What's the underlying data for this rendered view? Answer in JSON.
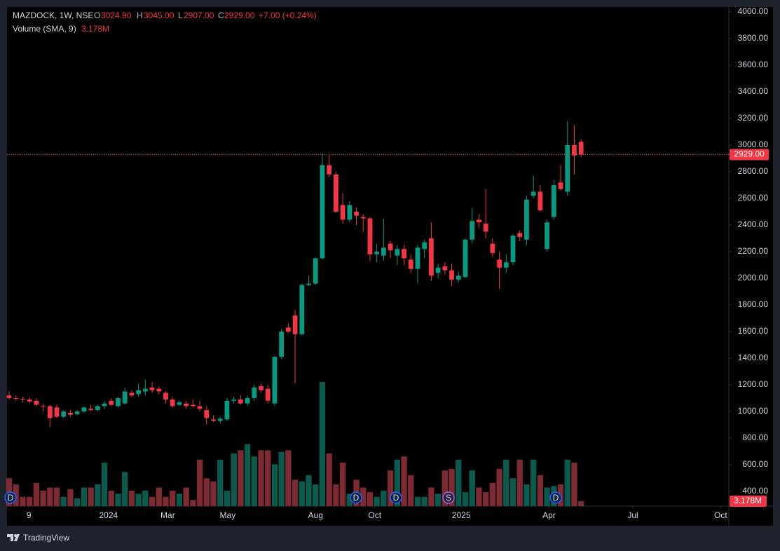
{
  "chart_data": {
    "type": "candlestick",
    "legend": {
      "symbol": "MAZDOCK, 1W, NSE",
      "open_label": "O",
      "open": "3024.90",
      "high_label": "H",
      "high": "3045.00",
      "low_label": "L",
      "low": "2907.00",
      "close_label": "C",
      "close": "2929.00",
      "change": "+7.00 (+0.24%)",
      "volume_label": "Volume (SMA, 9)",
      "volume": "3.178M"
    },
    "brand": "TradingView",
    "events": [
      "D",
      "D",
      "D",
      "S",
      "D"
    ],
    "up_color": "#089981",
    "down_color": "#f23645",
    "up_volume_color": "#0b5a4e",
    "down_volume_color": "#7d2a33",
    "grid": false,
    "open": [
      1120,
      1100,
      1095,
      1090,
      1080,
      1040,
      1040,
      1030,
      960,
      990,
      980,
      1000,
      1020,
      1010,
      1040,
      1080,
      1040,
      1060,
      1140,
      1130,
      1150,
      1180,
      1170,
      1140,
      1090,
      1050,
      1060,
      1050,
      1040,
      1010,
      940,
      930,
      940,
      1080,
      1090,
      1060,
      1100,
      1190,
      1170,
      1060,
      1410,
      1630,
      1720,
      1580,
      1950,
      1960,
      2150,
      2850,
      2780,
      2550,
      2440,
      2500,
      2460,
      2450,
      2180,
      2170,
      2260,
      2170,
      2220,
      2140,
      2070,
      2220,
      2300,
      2040,
      2090,
      2060,
      1990,
      2010,
      2290,
      2440,
      2410,
      2260,
      2140,
      2080,
      2120,
      2340,
      2290,
      2620,
      2650,
      2220,
      2460,
      2720,
      2650,
      3000,
      3024.9
    ],
    "high": [
      1150,
      1120,
      1110,
      1105,
      1100,
      1060,
      1050,
      1050,
      1010,
      1010,
      1010,
      1040,
      1050,
      1050,
      1080,
      1100,
      1110,
      1180,
      1160,
      1210,
      1240,
      1220,
      1190,
      1150,
      1110,
      1080,
      1080,
      1090,
      1080,
      1040,
      970,
      960,
      1100,
      1110,
      1120,
      1120,
      1200,
      1210,
      1200,
      1420,
      1620,
      1660,
      1760,
      1960,
      2020,
      2160,
      2940,
      2930,
      2800,
      2640,
      2580,
      2530,
      2480,
      2460,
      2260,
      2450,
      2280,
      2250,
      2250,
      2180,
      2250,
      2290,
      2420,
      2110,
      2120,
      2110,
      2050,
      2300,
      2530,
      2480,
      2670,
      2300,
      2200,
      2180,
      2330,
      2360,
      2620,
      2770,
      2700,
      2440,
      2740,
      2850,
      3180,
      3150,
      3045
    ],
    "low": [
      1090,
      1080,
      1070,
      1060,
      1040,
      1000,
      880,
      950,
      950,
      960,
      970,
      990,
      1000,
      1000,
      1020,
      1040,
      1030,
      1050,
      1110,
      1110,
      1120,
      1140,
      1130,
      1060,
      1030,
      1040,
      1020,
      1030,
      1000,
      900,
      920,
      910,
      930,
      1060,
      1050,
      1040,
      1080,
      1140,
      1060,
      1040,
      1390,
      1590,
      1210,
      1570,
      1940,
      1950,
      2140,
      2760,
      2490,
      2410,
      2420,
      2400,
      2350,
      2130,
      2120,
      2130,
      2150,
      2100,
      2100,
      2040,
      1960,
      2150,
      1980,
      2000,
      2030,
      1940,
      1970,
      2000,
      2260,
      2380,
      2300,
      2160,
      1920,
      2040,
      2100,
      2280,
      2250,
      2600,
      2500,
      2200,
      2440,
      2660,
      2620,
      2780,
      2907
    ],
    "close": [
      1100,
      1095,
      1090,
      1075,
      1050,
      1035,
      950,
      960,
      1000,
      975,
      1000,
      1030,
      1010,
      1040,
      1060,
      1050,
      1100,
      1150,
      1120,
      1160,
      1170,
      1160,
      1150,
      1090,
      1040,
      1070,
      1040,
      1040,
      1020,
      950,
      930,
      945,
      1080,
      1090,
      1060,
      1100,
      1180,
      1160,
      1080,
      1410,
      1600,
      1600,
      1580,
      1950,
      1960,
      2150,
      2850,
      2780,
      2500,
      2440,
      2550,
      2470,
      2450,
      2180,
      2200,
      2230,
      2210,
      2220,
      2150,
      2070,
      2230,
      2270,
      2020,
      2080,
      2060,
      1990,
      2020,
      2290,
      2430,
      2420,
      2350,
      2190,
      2080,
      2120,
      2320,
      2310,
      2590,
      2650,
      2510,
      2420,
      2700,
      2670,
      3000,
      2922,
      2929
    ],
    "volume": [
      18,
      14,
      6,
      6,
      15,
      10,
      12,
      12,
      6,
      11,
      5,
      12,
      12,
      14,
      28,
      10,
      8,
      22,
      10,
      8,
      10,
      6,
      12,
      6,
      10,
      8,
      12,
      4,
      30,
      18,
      16,
      30,
      10,
      34,
      36,
      40,
      32,
      36,
      36,
      27,
      35,
      36,
      17,
      16,
      20,
      14,
      80,
      34,
      14,
      28,
      8,
      17,
      12,
      9,
      6,
      10,
      23,
      30,
      32,
      20,
      6,
      6,
      12,
      8,
      23,
      24,
      30,
      9,
      23,
      12,
      9,
      15,
      24,
      30,
      18,
      30,
      14,
      30,
      20,
      12,
      13,
      14,
      30,
      28,
      3.178
    ],
    "last_price": 2929,
    "ylim": [
      289,
      4037
    ],
    "yticks": [
      {
        "value": 400,
        "label": "400.00"
      },
      {
        "value": 600,
        "label": "600.00"
      },
      {
        "value": 800,
        "label": "800.00"
      },
      {
        "value": 1000,
        "label": "1000.00"
      },
      {
        "value": 1200,
        "label": "1200.00"
      },
      {
        "value": 1400,
        "label": "1400.00"
      },
      {
        "value": 1600,
        "label": "1600.00"
      },
      {
        "value": 1800,
        "label": "1800.00"
      },
      {
        "value": 2000,
        "label": "2000.00"
      },
      {
        "value": 2200,
        "label": "2200.00"
      },
      {
        "value": 2400,
        "label": "2400.00"
      },
      {
        "value": 2600,
        "label": "2600.00"
      },
      {
        "value": 2800,
        "label": "2800.00"
      },
      {
        "value": 3000,
        "label": "3000.00"
      },
      {
        "value": 3200,
        "label": "3200.00"
      },
      {
        "value": 3400,
        "label": "3400.00"
      },
      {
        "value": 3600,
        "label": "3600.00"
      },
      {
        "value": 3800,
        "label": "3800.00"
      },
      {
        "value": 4000,
        "label": "4000.00"
      }
    ],
    "xlim": [
      -0.31,
      105.7
    ],
    "xticks": [
      {
        "value": 2.9,
        "label": "9"
      },
      {
        "value": 14.6,
        "label": "2024"
      },
      {
        "value": 23.3,
        "label": "Mar"
      },
      {
        "value": 32.1,
        "label": "May"
      },
      {
        "value": 45.0,
        "label": "Aug"
      },
      {
        "value": 53.7,
        "label": "Oct"
      },
      {
        "value": 66.4,
        "label": "2025"
      },
      {
        "value": 79.3,
        "label": "Apr"
      },
      {
        "value": 91.6,
        "label": "Jul"
      },
      {
        "value": 104.5,
        "label": "Oct"
      }
    ]
  }
}
